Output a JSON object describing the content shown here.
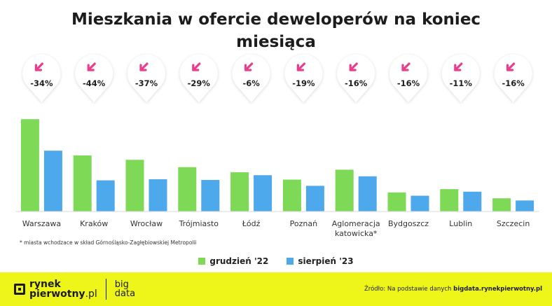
{
  "chart_data": {
    "type": "bar",
    "title_line1": "Mieszkania w ofercie deweloperów na koniec",
    "title_line2": "miesiąca",
    "categories": [
      "Warszawa",
      "Kraków",
      "Wrocław",
      "Trójmiasto",
      "Łódź",
      "Poznań",
      "Aglomeracja katowicka*",
      "Bydgoszcz",
      "Lublin",
      "Szczecin"
    ],
    "category_lines": [
      [
        "Warszawa"
      ],
      [
        "Kraków"
      ],
      [
        "Wrocław"
      ],
      [
        "Trójmiasto"
      ],
      [
        "Łódź"
      ],
      [
        "Poznań"
      ],
      [
        "Aglomeracja",
        "katowicka*"
      ],
      [
        "Bydgoszcz"
      ],
      [
        "Lublin"
      ],
      [
        "Szczecin"
      ]
    ],
    "series": [
      {
        "name": "grudzień '22",
        "color": "#7ed957",
        "values": [
          12600,
          7650,
          7050,
          6050,
          5350,
          4350,
          5700,
          2600,
          3050,
          1800
        ]
      },
      {
        "name": "sierpień '23",
        "color": "#4da9ec",
        "values": [
          8300,
          4250,
          4400,
          4300,
          4950,
          3500,
          4800,
          2150,
          2700,
          1500
        ]
      }
    ],
    "changes": [
      "-34%",
      "-44%",
      "-37%",
      "-29%",
      "-6%",
      "-19%",
      "-16%",
      "-16%",
      "-11%",
      "-16%"
    ],
    "ylim": [
      0,
      13000
    ],
    "xlabel": "",
    "ylabel": "",
    "grid": false,
    "legend_position": "bottom-center"
  },
  "note": "* miasta wchodzace w skład Górnośląsko-Zagłębiowskiej Metropolii",
  "legend": [
    {
      "label": "grudzień '22",
      "color": "#7ed957"
    },
    {
      "label": "sierpień '23",
      "color": "#4da9ec"
    }
  ],
  "footer": {
    "brand_bold": "rynek",
    "brand_line2_bold": "pierwotny",
    "brand_line2_light": ".pl",
    "brand_big_1": "big",
    "brand_big_2": "data",
    "source_prefix": "Źródło: Na podstawie danych",
    "source_link": "bigdata.rynekpierwotny.pl",
    "background": "#eef619"
  },
  "colors": {
    "down_arrow": "#e83e8c",
    "badge_text": "#1f1f1f",
    "badge_background": "#ffffff"
  },
  "icons": {
    "change_arrow": "arrow-down-left-icon"
  }
}
